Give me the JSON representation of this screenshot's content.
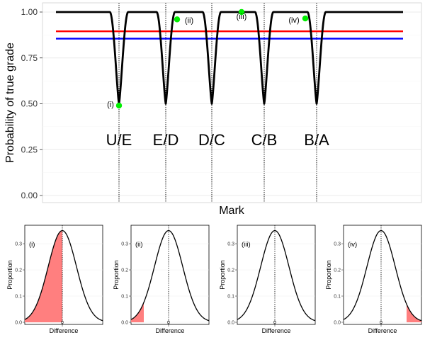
{
  "chart_data": [
    {
      "type": "line",
      "xlabel": "Mark",
      "ylabel": "Probability of true grade",
      "ylim": [
        0,
        1
      ],
      "y_ticks": [
        "0.00",
        "0.25",
        "0.50",
        "0.75",
        "1.00"
      ],
      "grid": true,
      "boundaries": [
        {
          "label": "U/E",
          "min_probability": 0.5
        },
        {
          "label": "E/D",
          "min_probability": 0.5
        },
        {
          "label": "D/C",
          "min_probability": 0.5
        },
        {
          "label": "C/B",
          "min_probability": 0.5
        },
        {
          "label": "B/A",
          "min_probability": 0.5
        }
      ],
      "reference_lines": [
        {
          "color": "#ff0000",
          "y": 0.895
        },
        {
          "color": "#0000ff",
          "y": 0.855
        }
      ],
      "curve_color": "#000000",
      "points": [
        {
          "label": "(i)",
          "y": 0.49,
          "color": "#00ee00"
        },
        {
          "label": "(ii)",
          "y": 0.96,
          "color": "#00ee00"
        },
        {
          "label": "(iii)",
          "y": 1.0,
          "color": "#00ee00"
        },
        {
          "label": "(iv)",
          "y": 0.965,
          "color": "#00ee00"
        }
      ]
    },
    {
      "type": "area",
      "label": "(i)",
      "xlabel": "Difference",
      "ylabel": "Proportion",
      "x_tick": "0",
      "y_ticks": [
        "0.0",
        "0.1",
        "0.2",
        "0.3"
      ],
      "peak_proportion": 0.35,
      "shaded_tail": "left",
      "shaded_fraction": 0.5,
      "fill_color": "#ff7f7f"
    },
    {
      "type": "area",
      "label": "(ii)",
      "xlabel": "Difference",
      "ylabel": "Proportion",
      "x_tick": "0",
      "y_ticks": [
        "0.0",
        "0.1",
        "0.2",
        "0.3"
      ],
      "peak_proportion": 0.35,
      "shaded_tail": "left",
      "shaded_fraction": 0.04,
      "fill_color": "#ff7f7f"
    },
    {
      "type": "area",
      "label": "(iii)",
      "xlabel": "Difference",
      "ylabel": "Proportion",
      "x_tick": "0",
      "y_ticks": [
        "0.0",
        "0.1",
        "0.2",
        "0.3"
      ],
      "peak_proportion": 0.35,
      "shaded_tail": "none",
      "shaded_fraction": 0,
      "fill_color": "#ff7f7f"
    },
    {
      "type": "area",
      "label": "(iv)",
      "xlabel": "Difference",
      "ylabel": "Proportion",
      "x_tick": "0",
      "y_ticks": [
        "0.0",
        "0.1",
        "0.2",
        "0.3"
      ],
      "peak_proportion": 0.35,
      "shaded_tail": "right",
      "shaded_fraction": 0.035,
      "fill_color": "#ff7f7f"
    }
  ]
}
